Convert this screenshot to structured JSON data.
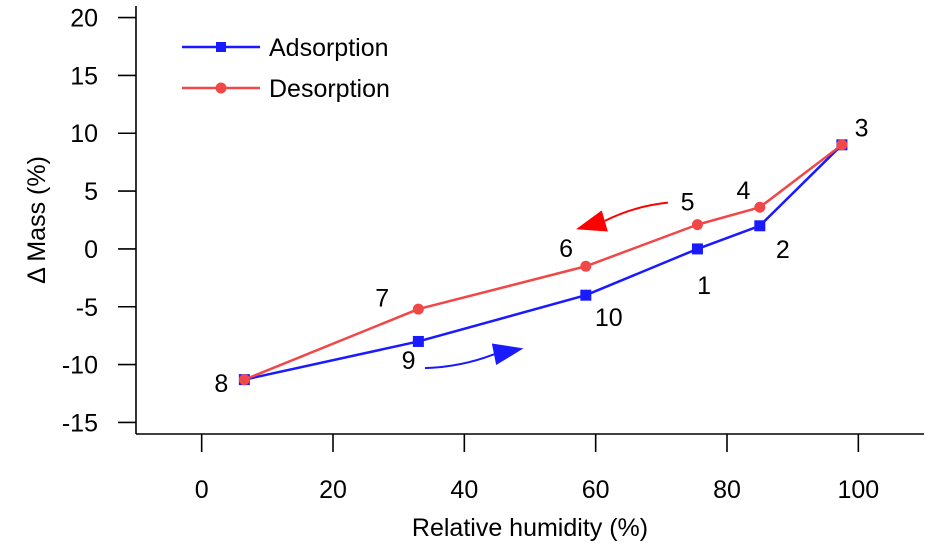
{
  "chart_data": {
    "type": "line",
    "xlabel": "Relative humidity (%)",
    "ylabel": "Δ Mass (%)",
    "xlim": [
      -10,
      110
    ],
    "ylim": [
      -16,
      21
    ],
    "xticks": [
      0,
      20,
      40,
      60,
      80,
      100
    ],
    "yticks": [
      20,
      15,
      10,
      5,
      0,
      -5,
      -10,
      -15
    ],
    "xtick_labels": [
      "0",
      "20",
      "40",
      "60",
      "80",
      "100"
    ],
    "ytick_labels": [
      "20",
      "15",
      "10",
      "5",
      "0",
      "-5",
      "-10",
      "-15"
    ],
    "grid": false,
    "legend_position": "top-left",
    "series": [
      {
        "name": "Adsorption",
        "color": "#1a1aff",
        "marker": "square",
        "x": [
          6.5,
          33,
          58.5,
          75.5,
          85,
          97.5
        ],
        "y": [
          -11.3,
          -8,
          -4,
          0,
          2,
          9
        ]
      },
      {
        "name": "Desorption",
        "color": "#f04848",
        "marker": "circle",
        "x": [
          97.5,
          85,
          75.5,
          58.5,
          33,
          6.5
        ],
        "y": [
          9,
          3.6,
          2.1,
          -1.5,
          -5.2,
          -11.3
        ]
      }
    ],
    "point_labels": [
      {
        "text": "1",
        "x": 76.5,
        "y": -3.1
      },
      {
        "text": "2",
        "x": 88.5,
        "y": 0
      },
      {
        "text": "3",
        "x": 100.5,
        "y": 10.5
      },
      {
        "text": "4",
        "x": 82.5,
        "y": 5.1
      },
      {
        "text": "5",
        "x": 74,
        "y": 4.1
      },
      {
        "text": "6",
        "x": 55.5,
        "y": 0.1
      },
      {
        "text": "7",
        "x": 27.5,
        "y": -4.2
      },
      {
        "text": "8",
        "x": 3,
        "y": -11.6
      },
      {
        "text": "9",
        "x": 31.5,
        "y": -9.6
      },
      {
        "text": "10",
        "x": 62,
        "y": -5.9
      }
    ],
    "arrows": [
      {
        "name": "desorption-direction-arrow",
        "color": "#ff0000",
        "from": [
          71,
          4
        ],
        "to": [
          57,
          1.7
        ]
      },
      {
        "name": "adsorption-direction-arrow",
        "color": "#1a1aff",
        "from": [
          34,
          -10.3
        ],
        "to": [
          49,
          -8.6
        ]
      }
    ]
  }
}
